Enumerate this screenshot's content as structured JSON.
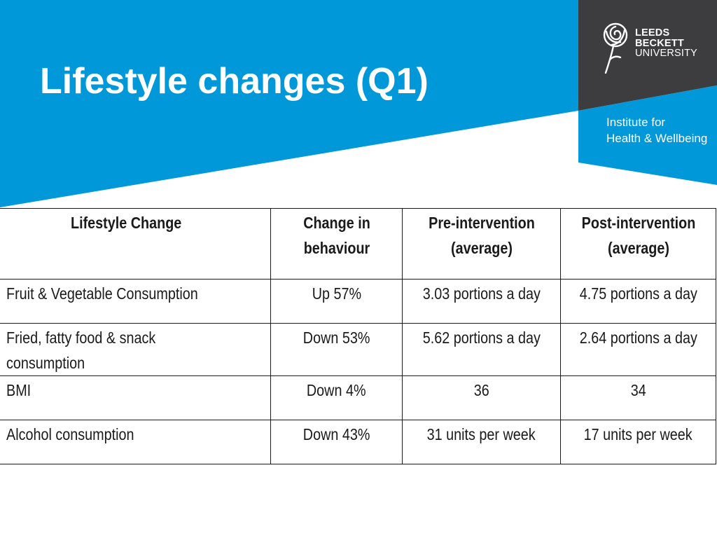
{
  "slide": {
    "title": "Lifestyle changes (Q1)"
  },
  "branding": {
    "university_lines": [
      "LEEDS",
      "BECKETT",
      "UNIVERSITY"
    ],
    "institute_lines": [
      "Institute for",
      "Health & Wellbeing"
    ],
    "logo_icon": "rose-icon"
  },
  "colors": {
    "banner_blue": "#0098d8",
    "dark_panel": "#3d3d3f",
    "text": "#1a1a1a"
  },
  "table": {
    "headers": [
      "Lifestyle Change",
      "Change in behaviour",
      "Pre-intervention (average)",
      "Post-intervention (average)"
    ],
    "rows": [
      [
        "Fruit & Vegetable Consumption",
        "Up 57%",
        "3.03 portions a day",
        "4.75 portions a day"
      ],
      [
        "Fried, fatty food & snack consumption",
        "Down 53%",
        "5.62 portions a day",
        "2.64 portions a day"
      ],
      [
        "BMI",
        "Down 4%",
        "36",
        "34"
      ],
      [
        "Alcohol consumption",
        "Down 43%",
        "31 units per week",
        "17 units per week"
      ]
    ]
  }
}
